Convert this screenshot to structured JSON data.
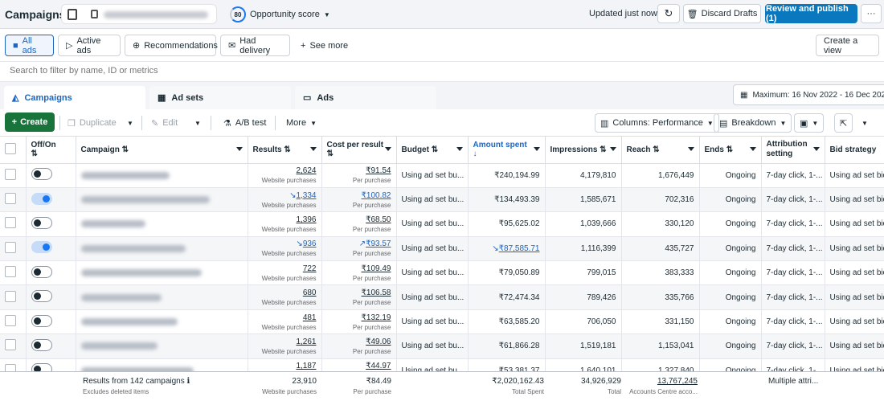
{
  "header": {
    "title": "Campaigns",
    "score_value": "80",
    "score_label": "Opportunity score",
    "updated": "Updated just now",
    "discard": "Discard Drafts",
    "review": "Review and publish (1)",
    "more": "···"
  },
  "filters": {
    "items": [
      "All ads",
      "Active ads",
      "Recommendations",
      "Had delivery"
    ],
    "see_more": "See more",
    "create_view": "Create a view"
  },
  "search": {
    "placeholder": "Search to filter by name, ID or metrics"
  },
  "tabs": {
    "campaigns": "Campaigns",
    "adsets": "Ad sets",
    "ads": "Ads",
    "date_range": "Maximum: 16 Nov 2022 - 16 Dec 2025"
  },
  "toolbar": {
    "create": "Create",
    "duplicate": "Duplicate",
    "edit": "Edit",
    "ab": "A/B test",
    "more": "More",
    "columns": "Columns: Performance",
    "breakdown": "Breakdown"
  },
  "columns": {
    "off_on": "Off/On",
    "campaign": "Campaign",
    "results": "Results",
    "cpr": "Cost per result",
    "budget": "Budget",
    "amount": "Amount spent",
    "impressions": "Impressions",
    "reach": "Reach",
    "ends": "Ends",
    "attribution": "Attribution setting",
    "bid": "Bid strategy"
  },
  "rows": [
    {
      "on": false,
      "results": "2,624",
      "cpr": "₹91.54",
      "budget": "Using ad set bu...",
      "amount": "₹240,194.99",
      "impr": "4,179,810",
      "reach": "1,676,449",
      "ends": "Ongoing",
      "attr": "7-day click, 1-...",
      "bid": "Using ad set bid"
    },
    {
      "on": true,
      "results": "1,334",
      "cpr": "₹100.82",
      "budget": "Using ad set bu...",
      "amount": "₹134,493.39",
      "impr": "1,585,671",
      "reach": "702,316",
      "ends": "Ongoing",
      "attr": "7-day click, 1-...",
      "bid": "Using ad set bid"
    },
    {
      "on": false,
      "results": "1,396",
      "cpr": "₹68.50",
      "budget": "Using ad set bu...",
      "amount": "₹95,625.02",
      "impr": "1,039,666",
      "reach": "330,120",
      "ends": "Ongoing",
      "attr": "7-day click, 1-...",
      "bid": "Using ad set bid"
    },
    {
      "on": true,
      "results": "936",
      "cpr": "₹93.57",
      "budget": "Using ad set bu...",
      "amount": "₹87,585.71",
      "impr": "1,116,399",
      "reach": "435,727",
      "ends": "Ongoing",
      "attr": "7-day click, 1-...",
      "bid": "Using ad set bid"
    },
    {
      "on": false,
      "results": "722",
      "cpr": "₹109.49",
      "budget": "Using ad set bu...",
      "amount": "₹79,050.89",
      "impr": "799,015",
      "reach": "383,333",
      "ends": "Ongoing",
      "attr": "7-day click, 1-...",
      "bid": "Using ad set bid"
    },
    {
      "on": false,
      "results": "680",
      "cpr": "₹106.58",
      "budget": "Using ad set bu...",
      "amount": "₹72,474.34",
      "impr": "789,426",
      "reach": "335,766",
      "ends": "Ongoing",
      "attr": "7-day click, 1-...",
      "bid": "Using ad set bid"
    },
    {
      "on": false,
      "results": "481",
      "cpr": "₹132.19",
      "budget": "Using ad set bu...",
      "amount": "₹63,585.20",
      "impr": "706,050",
      "reach": "331,150",
      "ends": "Ongoing",
      "attr": "7-day click, 1-...",
      "bid": "Using ad set bid"
    },
    {
      "on": false,
      "results": "1,261",
      "cpr": "₹49.06",
      "budget": "Using ad set bu...",
      "amount": "₹61,866.28",
      "impr": "1,519,181",
      "reach": "1,153,041",
      "ends": "Ongoing",
      "attr": "7-day click, 1-...",
      "bid": "Using ad set bid"
    },
    {
      "on": false,
      "results": "1,187",
      "cpr": "₹44.97",
      "budget": "Using ad set bu...",
      "amount": "₹53,381.37",
      "impr": "1,640,101",
      "reach": "1,327,840",
      "ends": "Ongoing",
      "attr": "7-day click, 1-...",
      "bid": "Using ad set bid"
    }
  ],
  "row_sub": {
    "results": "Website purchases",
    "cpr": "Per purchase"
  },
  "footer": {
    "label": "Results from 142 campaigns",
    "note": "Excludes deleted items",
    "results": "23,910",
    "results_sub": "Website purchases",
    "cpr": "₹84.49",
    "cpr_sub": "Per purchase",
    "amount": "₹2,020,162.43",
    "amount_sub": "Total Spent",
    "impr": "34,926,929",
    "impr_sub": "Total",
    "reach": "13,767,245",
    "reach_sub": "Accounts Centre acco...",
    "attr": "Multiple attri..."
  },
  "colors": {
    "accent": "#1d65c1",
    "create": "#19743c",
    "publish": "#0a78be"
  }
}
